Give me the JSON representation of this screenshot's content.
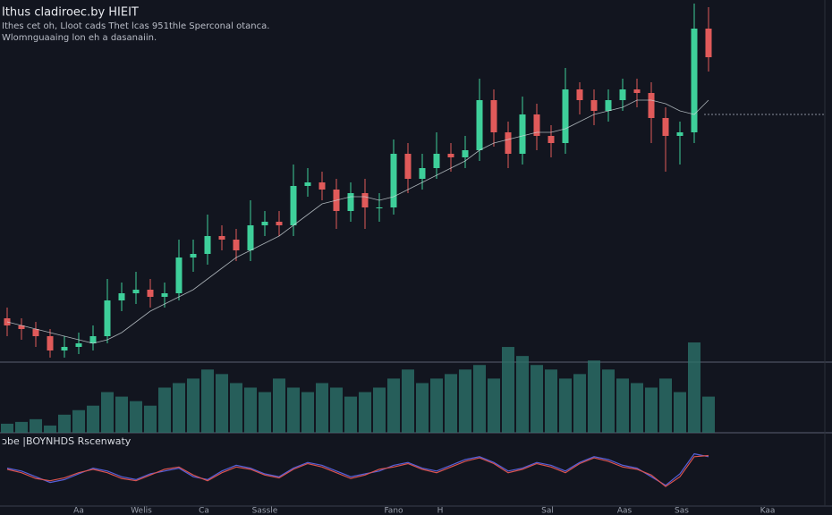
{
  "chart_data": {
    "type": "candlestick",
    "title": "Ithus cladiroec.by HIEIT",
    "subtitle": [
      "Ithes cet oh, Lloot cads Thet lcas 951thle Sperconal otanca.",
      "Wlomnguaaing lon eh a dasanaiin."
    ],
    "ylim": [
      0,
      100
    ],
    "up_color": "#3ecf9a",
    "down_color": "#e05a5a",
    "open": [
      11,
      9,
      8,
      6,
      2,
      3,
      4,
      6,
      16,
      18,
      19,
      17,
      18,
      28,
      29,
      34,
      33,
      30,
      37,
      38,
      37,
      48,
      49,
      47,
      41,
      46,
      42,
      42,
      57,
      50,
      53,
      57,
      56,
      58,
      72,
      63,
      57,
      68,
      62,
      60,
      75,
      72,
      69,
      72,
      75,
      74,
      67,
      62,
      63,
      92
    ],
    "high": [
      14,
      11,
      10,
      8,
      6,
      7,
      9,
      22,
      21,
      24,
      22,
      21,
      33,
      33,
      40,
      37,
      36,
      44,
      41,
      41,
      54,
      53,
      52,
      50,
      49,
      50,
      46,
      61,
      60,
      57,
      63,
      60,
      62,
      78,
      75,
      66,
      73,
      71,
      65,
      81,
      77,
      75,
      75,
      78,
      78,
      77,
      70,
      66,
      99,
      98
    ],
    "low": [
      6,
      5,
      3,
      0,
      0,
      1,
      2,
      4,
      13,
      15,
      14,
      14,
      16,
      24,
      26,
      30,
      27,
      27,
      34,
      34,
      34,
      45,
      44,
      36,
      38,
      36,
      38,
      40,
      46,
      47,
      50,
      52,
      53,
      55,
      59,
      53,
      54,
      58,
      56,
      57,
      68,
      65,
      66,
      69,
      70,
      60,
      52,
      54,
      60,
      80
    ],
    "close": [
      9,
      8,
      6,
      2,
      3,
      4,
      6,
      16,
      18,
      19,
      17,
      18,
      28,
      29,
      34,
      33,
      30,
      37,
      38,
      37,
      48,
      49,
      47,
      41,
      46,
      42,
      42,
      57,
      50,
      53,
      57,
      56,
      58,
      72,
      63,
      57,
      68,
      62,
      60,
      75,
      72,
      69,
      72,
      75,
      74,
      67,
      62,
      63,
      92,
      84
    ],
    "moving_average": {
      "color": "#cfd8dc",
      "values": [
        10,
        9,
        8,
        7,
        6,
        5,
        4,
        5,
        7,
        10,
        13,
        15,
        17,
        19,
        22,
        25,
        28,
        30,
        32,
        34,
        37,
        40,
        43,
        44,
        45,
        45,
        44,
        45,
        47,
        49,
        51,
        53,
        55,
        58,
        60,
        61,
        62,
        63,
        63,
        64,
        66,
        68,
        69,
        70,
        72,
        72,
        71,
        69,
        68,
        72
      ]
    },
    "reference_level": 68,
    "volume": {
      "color": "#2c7069",
      "ylim": [
        0,
        100
      ],
      "values": [
        10,
        12,
        15,
        8,
        20,
        25,
        30,
        45,
        40,
        35,
        30,
        50,
        55,
        60,
        70,
        65,
        55,
        50,
        45,
        60,
        50,
        45,
        55,
        50,
        40,
        45,
        50,
        60,
        70,
        55,
        60,
        65,
        70,
        75,
        60,
        95,
        85,
        75,
        70,
        60,
        65,
        80,
        70,
        60,
        55,
        50,
        60,
        45,
        100,
        40
      ]
    },
    "oscillator": {
      "title": "ɔbe |BOYNHDS Rscenwaty",
      "ylim": [
        0,
        100
      ],
      "series": [
        {
          "color": "#5560d8",
          "values": [
            60,
            55,
            45,
            35,
            40,
            50,
            60,
            55,
            45,
            40,
            50,
            55,
            60,
            45,
            40,
            55,
            65,
            60,
            50,
            45,
            60,
            70,
            65,
            55,
            45,
            50,
            55,
            65,
            70,
            60,
            55,
            65,
            75,
            80,
            70,
            55,
            60,
            70,
            65,
            55,
            70,
            80,
            75,
            65,
            60,
            45,
            30,
            50,
            85,
            80
          ]
        },
        {
          "color": "#d9534f",
          "values": [
            58,
            52,
            42,
            38,
            43,
            52,
            58,
            52,
            42,
            38,
            48,
            58,
            62,
            48,
            38,
            52,
            62,
            58,
            48,
            43,
            58,
            68,
            62,
            52,
            42,
            48,
            58,
            62,
            68,
            58,
            52,
            62,
            72,
            78,
            68,
            52,
            58,
            68,
            62,
            52,
            68,
            78,
            72,
            62,
            58,
            48,
            28,
            45,
            80,
            82
          ]
        }
      ]
    },
    "x_labels": [
      "Aa",
      "Welis",
      "Ca",
      "Sassle",
      "Fano",
      "H",
      "Sal",
      "Aas",
      "Sas",
      "Kaa"
    ]
  }
}
